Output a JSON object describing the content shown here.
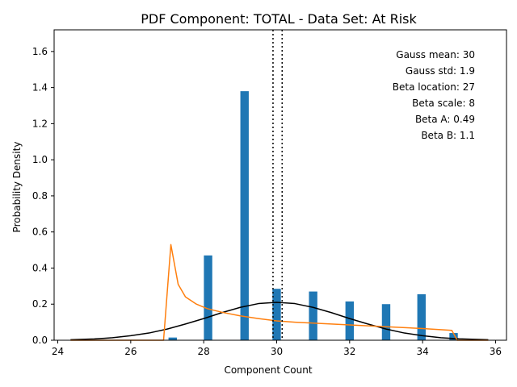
{
  "chart_data": {
    "type": "bar",
    "title": "PDF Component: TOTAL - Data Set: At Risk",
    "xlabel": "Component Count",
    "ylabel": "Probability Density",
    "xlim": [
      23.9,
      36.3
    ],
    "ylim": [
      0,
      1.72
    ],
    "xticks": [
      24,
      26,
      28,
      30,
      32,
      34,
      36
    ],
    "yticks": [
      0.0,
      0.2,
      0.4,
      0.6,
      0.8,
      1.0,
      1.2,
      1.4,
      1.6
    ],
    "xtick_labels": [
      "24",
      "26",
      "28",
      "30",
      "32",
      "34",
      "36"
    ],
    "ytick_labels": [
      "0.0",
      "0.2",
      "0.4",
      "0.6",
      "0.8",
      "1.0",
      "1.2",
      "1.4",
      "1.6"
    ],
    "grid": false,
    "bars": {
      "color": "#1f77b4",
      "width": 0.23,
      "x": [
        27.15,
        28.12,
        29.12,
        30.0,
        31.0,
        32.0,
        33.0,
        33.97,
        34.85
      ],
      "values": [
        0.015,
        0.47,
        1.38,
        0.285,
        0.27,
        0.215,
        0.2,
        0.255,
        0.04
      ]
    },
    "series": [
      {
        "type": "line",
        "color": "#000000",
        "x": [
          24.35,
          25.0,
          25.5,
          26.0,
          26.5,
          27.0,
          27.5,
          28.0,
          28.5,
          29.0,
          29.5,
          30.0,
          30.5,
          31.0,
          31.5,
          32.0,
          32.5,
          33.0,
          33.5,
          34.0,
          34.5,
          35.0,
          35.8
        ],
        "y": [
          0.003,
          0.007,
          0.014,
          0.025,
          0.04,
          0.062,
          0.09,
          0.12,
          0.153,
          0.182,
          0.203,
          0.21,
          0.203,
          0.182,
          0.153,
          0.12,
          0.09,
          0.062,
          0.04,
          0.025,
          0.014,
          0.008,
          0.003
        ]
      },
      {
        "type": "line",
        "color": "#ff7f0e",
        "x": [
          24.35,
          26.9,
          27.1,
          27.3,
          27.5,
          27.8,
          28.1,
          28.5,
          29.0,
          29.5,
          30.0,
          30.5,
          31.0,
          32.0,
          33.0,
          34.0,
          34.8,
          34.95,
          35.8
        ],
        "y": [
          0.0,
          0.0,
          0.53,
          0.31,
          0.24,
          0.2,
          0.175,
          0.155,
          0.135,
          0.12,
          0.107,
          0.1,
          0.095,
          0.085,
          0.075,
          0.065,
          0.055,
          0.0,
          0.0
        ]
      }
    ],
    "vlines": [
      29.9,
      30.15
    ],
    "annotations": [
      "Gauss mean: 30",
      "Gauss std: 1.9",
      "Beta location: 27",
      "Beta scale: 8",
      "Beta A: 0.49",
      "Beta B: 1.1"
    ]
  }
}
